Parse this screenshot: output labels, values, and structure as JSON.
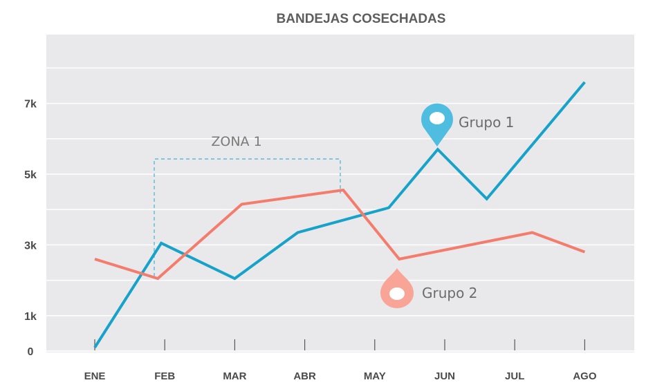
{
  "chart_data": {
    "type": "line",
    "title": "BANDEJAS COSECHADAS",
    "xlabel": "",
    "ylabel": "",
    "categories": [
      "ENE",
      "FEB",
      "MAR",
      "ABR",
      "MAY",
      "JUN",
      "JUL",
      "AGO"
    ],
    "ytick_labels": [
      {
        "value": 0,
        "label": "0"
      },
      {
        "value": 1000,
        "label": "1k"
      },
      {
        "value": 3000,
        "label": "3k"
      },
      {
        "value": 5000,
        "label": "5k"
      },
      {
        "value": 7000,
        "label": "7k"
      }
    ],
    "ylim": [
      0,
      8000
    ],
    "grid": true,
    "series": [
      {
        "name": "Grupo 1",
        "color": "#17a2c9",
        "points": [
          {
            "x": 0.0,
            "y": 100
          },
          {
            "x": 0.95,
            "y": 3050
          },
          {
            "x": 2.0,
            "y": 2050
          },
          {
            "x": 2.9,
            "y": 3350
          },
          {
            "x": 4.2,
            "y": 4050
          },
          {
            "x": 4.9,
            "y": 5700
          },
          {
            "x": 5.6,
            "y": 4300
          },
          {
            "x": 7.0,
            "y": 7600
          }
        ]
      },
      {
        "name": "Grupo 2",
        "color": "#f47c6c",
        "points": [
          {
            "x": 0.0,
            "y": 2600
          },
          {
            "x": 0.9,
            "y": 2050
          },
          {
            "x": 2.1,
            "y": 4150
          },
          {
            "x": 3.55,
            "y": 4550
          },
          {
            "x": 4.35,
            "y": 2600
          },
          {
            "x": 6.25,
            "y": 3350
          },
          {
            "x": 7.0,
            "y": 2800
          }
        ]
      }
    ],
    "annotations": [
      {
        "text": "ZONA 1",
        "type": "bracket",
        "x_from": 0.85,
        "x_to": 3.55,
        "y": 5500
      },
      {
        "text": "Grupo 1",
        "type": "marker",
        "series": "Grupo 1",
        "icon": "map-pin-icon",
        "color": "#4fbde0"
      },
      {
        "text": "Grupo 2",
        "type": "marker",
        "series": "Grupo 2",
        "icon": "drop-icon",
        "color": "#f8a597"
      }
    ]
  }
}
